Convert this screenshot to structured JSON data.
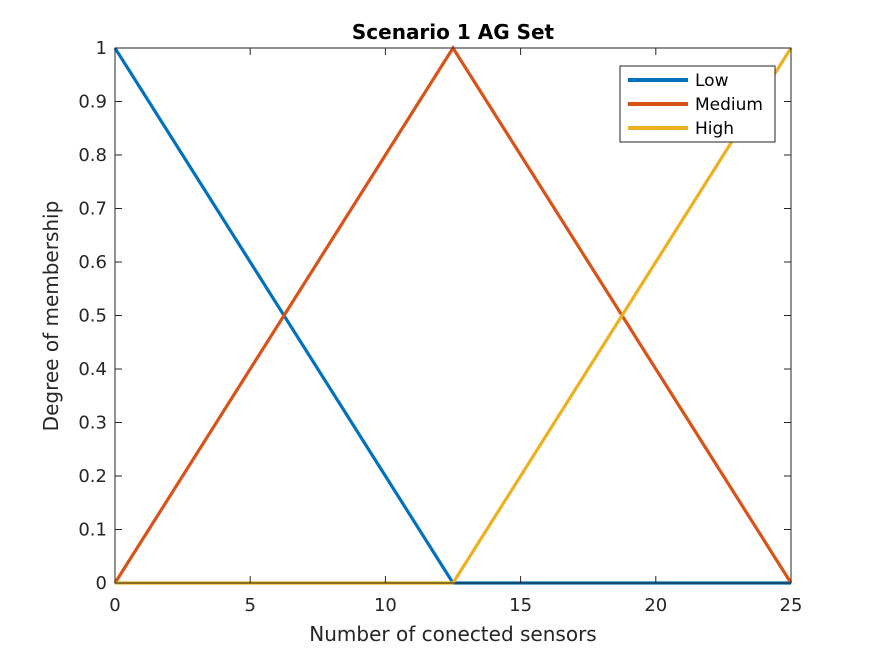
{
  "chart_data": {
    "type": "line",
    "title": "Scenario 1 AG Set",
    "xlabel": "Number of conected sensors",
    "ylabel": "Degree of membership",
    "xlim": [
      0,
      25
    ],
    "ylim": [
      0,
      1
    ],
    "xticks": [
      0,
      5,
      10,
      15,
      20,
      25
    ],
    "xtick_labels": [
      "0",
      "5",
      "10",
      "15",
      "20",
      "25"
    ],
    "yticks": [
      0,
      0.1,
      0.2,
      0.3,
      0.4,
      0.5,
      0.6,
      0.7,
      0.8,
      0.9,
      1
    ],
    "ytick_labels": [
      "0",
      "0.1",
      "0.2",
      "0.3",
      "0.4",
      "0.5",
      "0.6",
      "0.7",
      "0.8",
      "0.9",
      "1"
    ],
    "grid": false,
    "box": true,
    "legend_position": "top-right",
    "series": [
      {
        "name": "Low",
        "color": "#0072BD",
        "x": [
          0,
          12.5,
          25
        ],
        "y": [
          1,
          0,
          0
        ]
      },
      {
        "name": "Medium",
        "color": "#D95319",
        "x": [
          0,
          12.5,
          25
        ],
        "y": [
          0,
          1,
          0
        ]
      },
      {
        "name": "High",
        "color": "#EDB120",
        "x": [
          0,
          12.5,
          25
        ],
        "y": [
          0,
          0,
          1
        ]
      }
    ]
  }
}
